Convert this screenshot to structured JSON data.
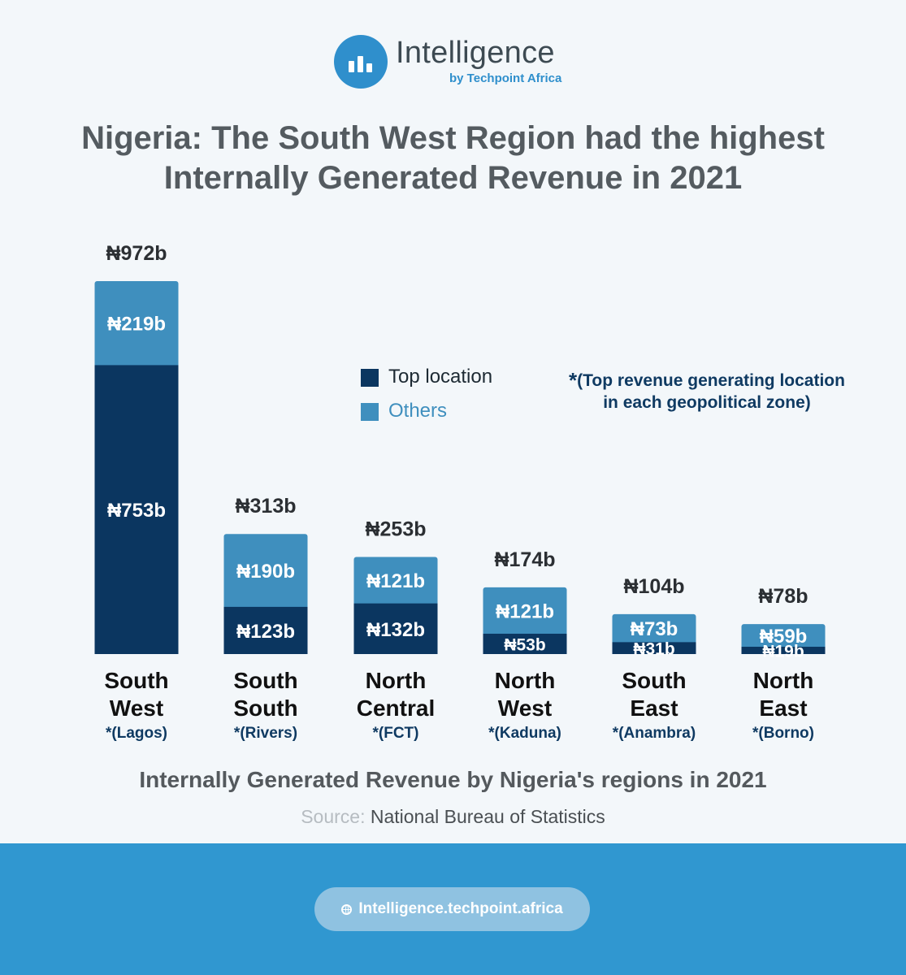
{
  "brand": {
    "name": "Intelligence",
    "sub": "by Techpoint Africa"
  },
  "title": {
    "line1": "Nigeria: The South West Region had the highest",
    "line2": "Internally Generated Revenue in 2021"
  },
  "colors": {
    "top": "#0b3660",
    "others": "#3f8fbe",
    "accent": "#2f8fcc"
  },
  "chart_data": {
    "type": "bar",
    "stacked": true,
    "title": "Internally Generated Revenue by Nigeria's regions in 2021",
    "unit": "₦ billion",
    "categories": [
      {
        "line1": "South",
        "line2": "West",
        "sub": "*(Lagos)"
      },
      {
        "line1": "South",
        "line2": "South",
        "sub": "*(Rivers)"
      },
      {
        "line1": "North",
        "line2": "Central",
        "sub": "*(FCT)"
      },
      {
        "line1": "North",
        "line2": "West",
        "sub": "*(Kaduna)"
      },
      {
        "line1": "South",
        "line2": "East",
        "sub": "*(Anambra)"
      },
      {
        "line1": "North",
        "line2": "East",
        "sub": "*(Borno)"
      }
    ],
    "series": [
      {
        "name": "Top location",
        "values": [
          753,
          123,
          132,
          53,
          31,
          19
        ],
        "labels": [
          "₦753b",
          "₦123b",
          "₦132b",
          "₦53b",
          "₦31b",
          "₦19b"
        ]
      },
      {
        "name": "Others",
        "values": [
          219,
          190,
          121,
          121,
          73,
          59
        ],
        "labels": [
          "₦219b",
          "₦190b",
          "₦121b",
          "₦121b",
          "₦73b",
          "₦59b"
        ]
      }
    ],
    "totals": [
      972,
      313,
      253,
      174,
      104,
      78
    ],
    "total_labels": [
      "₦972b",
      "₦313b",
      "₦253b",
      "₦174b",
      "₦104b",
      "₦78b"
    ],
    "ylim": [
      0,
      972
    ],
    "grid": false
  },
  "legend": {
    "top": "Top location",
    "others": "Others"
  },
  "note": {
    "star": "*",
    "line1": "(Top revenue generating location",
    "line2": "in each geopolitical zone)"
  },
  "source": {
    "label": "Source:",
    "value": "National Bureau of Statistics"
  },
  "footer": {
    "url": "Intelligence.techpoint.africa"
  }
}
